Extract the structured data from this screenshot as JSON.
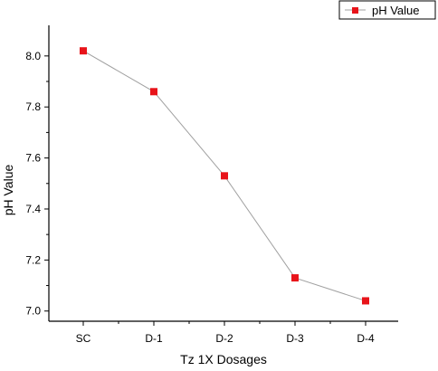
{
  "chart_data": {
    "type": "line",
    "categories": [
      "SC",
      "D-1",
      "D-2",
      "D-3",
      "D-4"
    ],
    "series": [
      {
        "name": "pH Value",
        "values": [
          8.02,
          7.86,
          7.53,
          7.13,
          7.04
        ],
        "color": "#e8141a",
        "line_color": "#a0a0a0"
      }
    ],
    "xlabel": "Tz 1X Dosages",
    "ylabel": "pH Value",
    "ylim": [
      6.96,
      8.12
    ],
    "yticks": [
      "7.0",
      "7.2",
      "7.4",
      "7.6",
      "7.8",
      "8.0"
    ],
    "legend": "top-right",
    "grid": false
  }
}
